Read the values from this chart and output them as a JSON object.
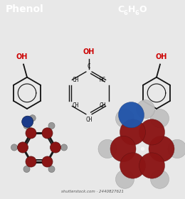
{
  "title_left": "Phenol",
  "title_right_parts": [
    "C",
    "6",
    "H",
    "6",
    "O"
  ],
  "title_bg": "#111111",
  "title_fg": "#ffffff",
  "bg_color": "#e8e8e8",
  "watermark": "shutterstock.com · 2440827621",
  "oh_color": "#cc0000",
  "bond_color": "#111111",
  "carbon_color": "#8b1515",
  "hydrogen_color": "#999999",
  "oxygen_color": "#1a3a7a",
  "space_carbon_color": "#8b1515",
  "space_h_color": "#c0c0c0",
  "space_o_color": "#2255aa"
}
